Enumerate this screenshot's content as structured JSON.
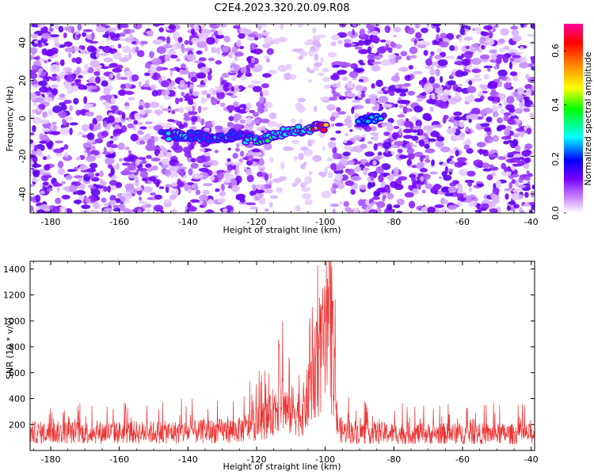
{
  "title": "C2E4.2023.320.20.09.R08",
  "chart_data": [
    {
      "type": "heatmap",
      "xlabel": "Height of straight line (km)",
      "ylabel": "Frequency (Hz)",
      "xlim": [
        -186,
        -39
      ],
      "ylim": [
        -50,
        50
      ],
      "x_ticks": [
        -180,
        -160,
        -140,
        -120,
        -100,
        -80,
        -60,
        -40
      ],
      "y_ticks": [
        -40,
        -20,
        0,
        20,
        40
      ],
      "colorbar": {
        "label": "Normalized spectral amplitude",
        "range": [
          0,
          0.7
        ],
        "ticks": [
          0.0,
          0.2,
          0.4,
          0.6
        ],
        "colors": [
          "#ffffff",
          "#cc88ff",
          "#7700ff",
          "#0000ff",
          "#00ffff",
          "#00ff00",
          "#ffff00",
          "#ff8800",
          "#ff0000",
          "#ff0099"
        ]
      },
      "noise_gap_x": [
        -116,
        -98
      ],
      "signal_track": [
        {
          "x": -147,
          "y": -9,
          "amp": 0.3
        },
        {
          "x": -143,
          "y": -9,
          "amp": 0.3
        },
        {
          "x": -139,
          "y": -9,
          "amp": 0.3
        },
        {
          "x": -135,
          "y": -10,
          "amp": 0.24
        },
        {
          "x": -131,
          "y": -10,
          "amp": 0.3
        },
        {
          "x": -127,
          "y": -9,
          "amp": 0.3
        },
        {
          "x": -123,
          "y": -11,
          "amp": 0.36
        },
        {
          "x": -119,
          "y": -11,
          "amp": 0.4
        },
        {
          "x": -115,
          "y": -10,
          "amp": 0.45
        },
        {
          "x": -111,
          "y": -7,
          "amp": 0.4
        },
        {
          "x": -107,
          "y": -6,
          "amp": 0.45
        },
        {
          "x": -103,
          "y": -5,
          "amp": 0.55
        },
        {
          "x": -100,
          "y": -4,
          "amp": 0.65
        },
        {
          "x": -89,
          "y": -2,
          "amp": 0.22
        },
        {
          "x": -85,
          "y": 1,
          "amp": 0.25
        }
      ]
    },
    {
      "type": "line",
      "xlabel": "Height of straight line (km)",
      "ylabel": "SNR (10 * v/v)",
      "xlim": [
        -186,
        -39
      ],
      "ylim": [
        0,
        1460
      ],
      "x_ticks": [
        -180,
        -160,
        -140,
        -120,
        -100,
        -80,
        -60,
        -40
      ],
      "y_ticks": [
        200,
        400,
        600,
        800,
        1000,
        1200,
        1400
      ],
      "line_color": "#ee3333",
      "baseline": [
        {
          "x": -186,
          "y": 140
        },
        {
          "x": -140,
          "y": 145
        },
        {
          "x": -125,
          "y": 160
        },
        {
          "x": -120,
          "y": 210
        },
        {
          "x": -116,
          "y": 270
        },
        {
          "x": -113,
          "y": 420
        },
        {
          "x": -111,
          "y": 300
        },
        {
          "x": -109,
          "y": 330
        },
        {
          "x": -107,
          "y": 280
        },
        {
          "x": -105,
          "y": 420
        },
        {
          "x": -103,
          "y": 600
        },
        {
          "x": -101,
          "y": 780
        },
        {
          "x": -99,
          "y": 850
        },
        {
          "x": -97.5,
          "y": 650
        },
        {
          "x": -96.5,
          "y": 200
        },
        {
          "x": -95,
          "y": 150
        },
        {
          "x": -86,
          "y": 140
        },
        {
          "x": -80,
          "y": 135
        },
        {
          "x": -39,
          "y": 130
        }
      ],
      "peaks": [
        {
          "x": -113.5,
          "y": 870
        },
        {
          "x": -110.5,
          "y": 720
        },
        {
          "x": -104.5,
          "y": 1050
        },
        {
          "x": -102.5,
          "y": 1020
        },
        {
          "x": -101.0,
          "y": 1200
        },
        {
          "x": -98.7,
          "y": 1460
        },
        {
          "x": -97.8,
          "y": 1180
        }
      ]
    }
  ]
}
